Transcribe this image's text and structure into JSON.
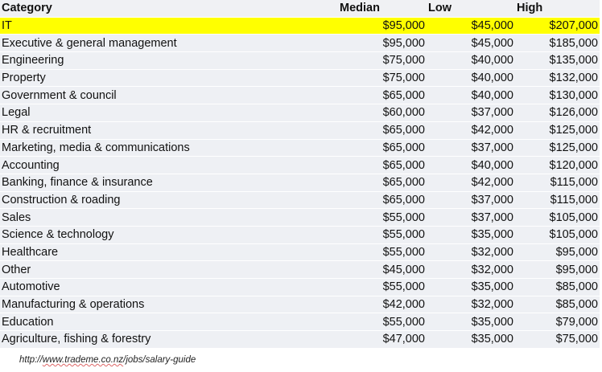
{
  "table": {
    "headers": [
      "Category",
      "Median",
      "Low",
      "High"
    ],
    "highlight_color": "#ffff00",
    "rows": [
      [
        "IT",
        "$95,000",
        "$45,000",
        "$207,000"
      ],
      [
        "Executive & general management",
        "$95,000",
        "$45,000",
        "$185,000"
      ],
      [
        "Engineering",
        "$75,000",
        "$40,000",
        "$135,000"
      ],
      [
        "Property",
        "$75,000",
        "$40,000",
        "$132,000"
      ],
      [
        "Government & council",
        "$65,000",
        "$40,000",
        "$130,000"
      ],
      [
        "Legal",
        "$60,000",
        "$37,000",
        "$126,000"
      ],
      [
        "HR & recruitment",
        "$65,000",
        "$42,000",
        "$125,000"
      ],
      [
        "Marketing, media & communications",
        "$65,000",
        "$37,000",
        "$125,000"
      ],
      [
        "Accounting",
        "$65,000",
        "$40,000",
        "$120,000"
      ],
      [
        "Banking, finance & insurance",
        "$65,000",
        "$42,000",
        "$115,000"
      ],
      [
        "Construction & roading",
        "$65,000",
        "$37,000",
        "$115,000"
      ],
      [
        "Sales",
        "$55,000",
        "$37,000",
        "$105,000"
      ],
      [
        "Science & technology",
        "$55,000",
        "$35,000",
        "$105,000"
      ],
      [
        "Healthcare",
        "$55,000",
        "$32,000",
        "$95,000"
      ],
      [
        "Other",
        "$45,000",
        "$32,000",
        "$95,000"
      ],
      [
        "Automotive",
        "$55,000",
        "$35,000",
        "$85,000"
      ],
      [
        "Manufacturing & operations",
        "$42,000",
        "$32,000",
        "$85,000"
      ],
      [
        "Education",
        "$55,000",
        "$35,000",
        "$79,000"
      ],
      [
        "Agriculture, fishing & forestry",
        "$47,000",
        "$35,000",
        "$75,000"
      ]
    ]
  },
  "source": {
    "prefix": "http://",
    "domain": "www.trademe.co.nz",
    "path": "/jobs/salary-guide"
  }
}
